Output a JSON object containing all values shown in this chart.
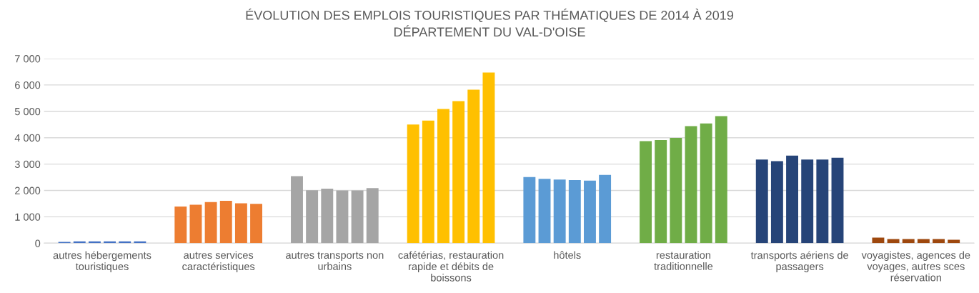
{
  "chart_data": {
    "type": "bar",
    "title": "ÉVOLUTION DES EMPLOIS TOURISTIQUES PAR THÉMATIQUES DE 2014 À 2019\nDÉPARTEMENT DU VAL-D'OISE",
    "categories": [
      "autres hébergements\ntouristiques",
      "autres services\ncaractéristiques",
      "autres transports non\nurbains",
      "cafétérias, restauration\nrapide et débits de\nboissons",
      "hôtels",
      "restauration\ntraditionnelle",
      "transports aériens de\npassagers",
      "voyagistes, agences de\nvoyages, autres sces\nréservation"
    ],
    "series": [
      {
        "colors": [
          "#4472c4",
          "#ed7d31",
          "#a5a5a5",
          "#ffc000",
          "#5b9bd5",
          "#70ad47",
          "#264478",
          "#9e480e"
        ],
        "values": [
          50,
          1390,
          2540,
          4500,
          2510,
          3870,
          3170,
          210
        ]
      },
      {
        "colors": [
          "#4472c4",
          "#ed7d31",
          "#a5a5a5",
          "#ffc000",
          "#5b9bd5",
          "#70ad47",
          "#264478",
          "#9e480e"
        ],
        "values": [
          70,
          1460,
          2010,
          4650,
          2440,
          3910,
          3110,
          160
        ]
      },
      {
        "colors": [
          "#4472c4",
          "#ed7d31",
          "#a5a5a5",
          "#ffc000",
          "#5b9bd5",
          "#70ad47",
          "#264478",
          "#9e480e"
        ],
        "values": [
          70,
          1560,
          2070,
          5090,
          2410,
          3990,
          3320,
          160
        ]
      },
      {
        "colors": [
          "#4472c4",
          "#ed7d31",
          "#a5a5a5",
          "#ffc000",
          "#5b9bd5",
          "#70ad47",
          "#264478",
          "#9e480e"
        ],
        "values": [
          70,
          1610,
          2000,
          5390,
          2390,
          4440,
          3170,
          160
        ]
      },
      {
        "colors": [
          "#4472c4",
          "#ed7d31",
          "#a5a5a5",
          "#ffc000",
          "#5b9bd5",
          "#70ad47",
          "#264478",
          "#9e480e"
        ],
        "values": [
          70,
          1510,
          2000,
          5820,
          2370,
          4540,
          3170,
          160
        ]
      },
      {
        "colors": [
          "#4472c4",
          "#ed7d31",
          "#a5a5a5",
          "#ffc000",
          "#5b9bd5",
          "#70ad47",
          "#264478",
          "#9e480e"
        ],
        "values": [
          70,
          1490,
          2090,
          6470,
          2590,
          4820,
          3240,
          130
        ]
      }
    ],
    "ylim": [
      0,
      7000
    ],
    "yticks": [
      {
        "value": 0,
        "label": "0"
      },
      {
        "value": 1000,
        "label": "1 000"
      },
      {
        "value": 2000,
        "label": "2 000"
      },
      {
        "value": 3000,
        "label": "3 000"
      },
      {
        "value": 4000,
        "label": "4 000"
      },
      {
        "value": 5000,
        "label": "5 000"
      },
      {
        "value": 6000,
        "label": "6 000"
      },
      {
        "value": 7000,
        "label": "7 000"
      }
    ],
    "grid": "y"
  }
}
